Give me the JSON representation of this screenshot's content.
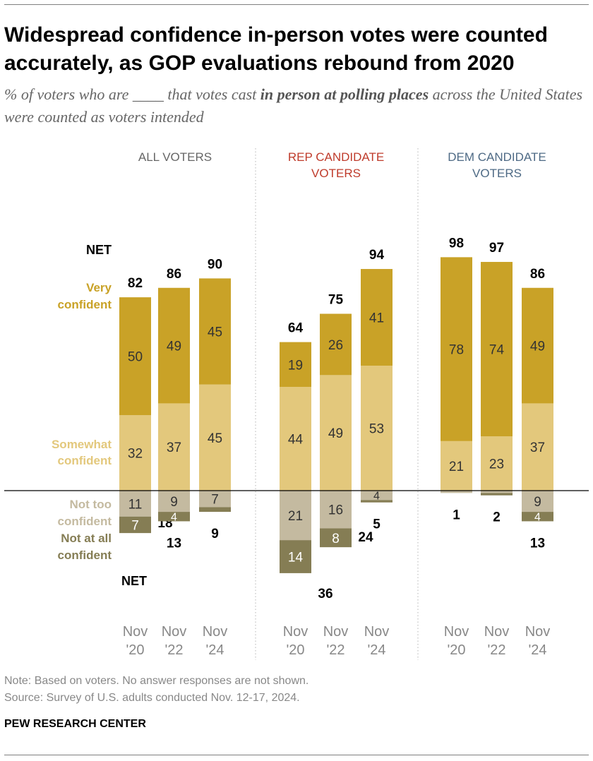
{
  "title": "Widespread confidence in-person votes were counted accurately, as GOP evaluations rebound from 2020",
  "subtitle_before": "% of voters who are ____ that votes cast ",
  "subtitle_bold": "in person at polling places",
  "subtitle_after": " across the United States were counted as voters intended",
  "note": "Note: Based on voters. No answer responses are not shown.",
  "source": "Source: Survey of U.S. adults conducted Nov. 12-17, 2024.",
  "brand": "PEW RESEARCH CENTER",
  "colors": {
    "very_confident": "#c9a227",
    "somewhat_confident": "#e3c87c",
    "not_too_confident": "#c4baa0",
    "not_at_all_confident": "#857d54",
    "rep_header": "#bf3b2b",
    "dem_header": "#4e6a85",
    "all_header": "#666666"
  },
  "chart_data": {
    "type": "bar",
    "stacked": "diverging",
    "categories": [
      "Nov '20",
      "Nov '22",
      "Nov '24"
    ],
    "legend": {
      "net": "NET",
      "very": [
        "Very",
        "confident"
      ],
      "somewhat": [
        "Somewhat",
        "confident"
      ],
      "not_too": [
        "Not too",
        "confident"
      ],
      "not_at_all": [
        "Not at all",
        "confident"
      ]
    },
    "series_names": [
      "Very confident",
      "Somewhat confident",
      "Not too confident",
      "Not at all confident"
    ],
    "groups": [
      {
        "header": [
          "ALL VOTERS"
        ],
        "color_key": "all_header",
        "bars": [
          {
            "period": [
              "Nov",
              "'20"
            ],
            "very": 50,
            "somewhat": 32,
            "not_too": 11,
            "not_at_all": 7,
            "net_pos": 82,
            "net_neg": 18
          },
          {
            "period": [
              "Nov",
              "'22"
            ],
            "very": 49,
            "somewhat": 37,
            "not_too": 9,
            "not_at_all": 4,
            "net_pos": 86,
            "net_neg": 13
          },
          {
            "period": [
              "Nov",
              "'24"
            ],
            "very": 45,
            "somewhat": 45,
            "not_too": 7,
            "not_at_all": 2,
            "net_pos": 90,
            "net_neg": 9
          }
        ]
      },
      {
        "header": [
          "REP CANDIDATE",
          "VOTERS"
        ],
        "color_key": "rep_header",
        "bars": [
          {
            "period": [
              "Nov",
              "'20"
            ],
            "very": 19,
            "somewhat": 44,
            "not_too": 21,
            "not_at_all": 14,
            "net_pos": 64,
            "net_neg": 36
          },
          {
            "period": [
              "Nov",
              "'22"
            ],
            "very": 26,
            "somewhat": 49,
            "not_too": 16,
            "not_at_all": 8,
            "net_pos": 75,
            "net_neg": 24
          },
          {
            "period": [
              "Nov",
              "'24"
            ],
            "very": 41,
            "somewhat": 53,
            "not_too": 4,
            "not_at_all": 1,
            "net_pos": 94,
            "net_neg": 5
          }
        ]
      },
      {
        "header": [
          "DEM CANDIDATE",
          "VOTERS"
        ],
        "color_key": "dem_header",
        "bars": [
          {
            "period": [
              "Nov",
              "'20"
            ],
            "very": 78,
            "somewhat": 21,
            "not_too": 1,
            "not_at_all": 0,
            "net_pos": 98,
            "net_neg": 1
          },
          {
            "period": [
              "Nov",
              "'22"
            ],
            "very": 74,
            "somewhat": 23,
            "not_too": 1,
            "not_at_all": 1,
            "net_pos": 97,
            "net_neg": 2
          },
          {
            "period": [
              "Nov",
              "'24"
            ],
            "very": 49,
            "somewhat": 37,
            "not_too": 9,
            "not_at_all": 4,
            "net_pos": 86,
            "net_neg": 13
          }
        ]
      }
    ]
  }
}
